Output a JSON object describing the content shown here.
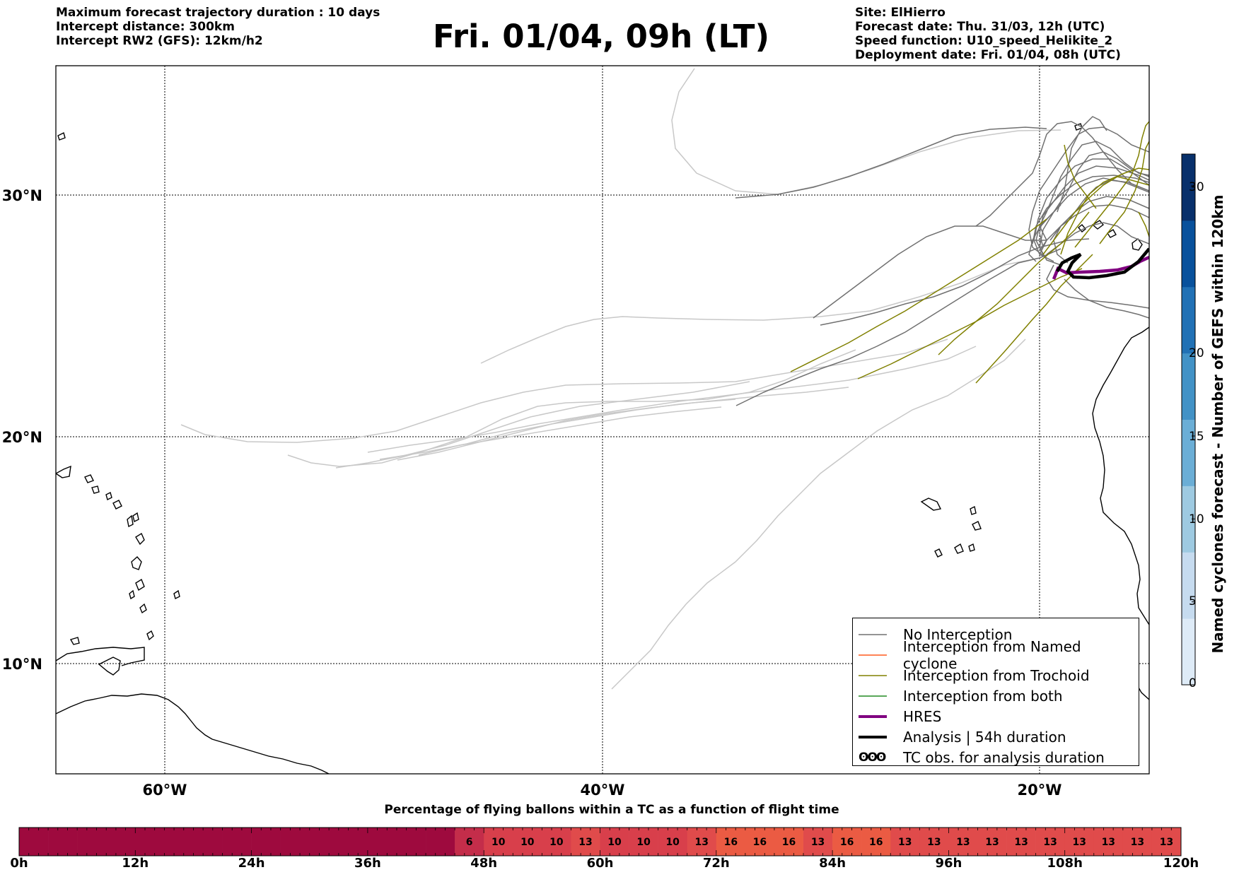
{
  "header": {
    "left_lines": [
      "Maximum forecast trajectory duration : 10 days",
      "Intercept distance: 300km",
      "Intercept RW2 (GFS):  12km/h2"
    ],
    "title": "Fri. 01/04, 09h (LT)",
    "right_lines": [
      "Site: ElHierro",
      "Forecast date: Thu. 31/03, 12h (UTC)",
      "Speed function: U10_speed_Helikite_2",
      "Deployment date: Fri. 01/04, 08h (UTC)"
    ]
  },
  "map": {
    "extent": {
      "lon_min": -65,
      "lon_max": -15,
      "lat_min": 5.4,
      "lat_max": 34.7
    },
    "lat_labels": [
      "30°N",
      "20°N",
      "10°N"
    ],
    "lon_labels": [
      "60°W",
      "40°W",
      "20°W"
    ],
    "colors": {
      "no_interception": "#707070",
      "no_interception_light": "#c8c8c8",
      "trochoid": "#808000",
      "named_cyclone": "#ff5a1e",
      "both": "#228b22",
      "hres": "#800080",
      "analysis": "#000000"
    }
  },
  "legend": {
    "items": [
      {
        "label": "No Interception",
        "color": "#707070",
        "width": 1.2
      },
      {
        "label": "Interception from Named cyclone",
        "color": "#ff5a1e",
        "width": 1.2
      },
      {
        "label": "Interception from Trochoid",
        "color": "#808000",
        "width": 1.2
      },
      {
        "label": "Interception from both",
        "color": "#228b22",
        "width": 1.2
      },
      {
        "label": "HRES",
        "color": "#800080",
        "width": 4
      },
      {
        "label": "Analysis | 54h duration",
        "color": "#000000",
        "width": 4
      }
    ],
    "tc_obs_label": "TC obs. for analysis duration",
    "tc_obs_symbol": "ʘʘʘ"
  },
  "colorbar": {
    "title": "Named cyclones forecast - Number of GEFS within 120km",
    "range": [
      0,
      32
    ],
    "ticks": [
      "0",
      "5",
      "10",
      "15",
      "20",
      "30"
    ],
    "tick_values": [
      0,
      5,
      10,
      15,
      20,
      30
    ],
    "colors": [
      "#deebf7",
      "#c6dbef",
      "#9ecae1",
      "#6baed6",
      "#4292c6",
      "#2171b5",
      "#08519c",
      "#08306b"
    ]
  },
  "bottom_bar": {
    "title": "Percentage of flying ballons within a TC as a function of flight time",
    "hour_labels": [
      "0h",
      "12h",
      "24h",
      "36h",
      "48h",
      "60h",
      "72h",
      "84h",
      "96h",
      "108h",
      "120h"
    ],
    "values": [
      0,
      0,
      0,
      0,
      0,
      0,
      0,
      0,
      0,
      0,
      0,
      0,
      0,
      0,
      0,
      6,
      10,
      10,
      10,
      13,
      10,
      10,
      10,
      13,
      16,
      16,
      16,
      13,
      16,
      16,
      13,
      13,
      13,
      13,
      13,
      13,
      13,
      13,
      13,
      13
    ],
    "value_labels": [
      "",
      "",
      "",
      "",
      "",
      "",
      "",
      "",
      "",
      "",
      "",
      "",
      "",
      "",
      "",
      "6",
      "10",
      "10",
      "10",
      "13",
      "10",
      "10",
      "10",
      "13",
      "16",
      "16",
      "16",
      "13",
      "16",
      "16",
      "13",
      "13",
      "13",
      "13",
      "13",
      "13",
      "13",
      "13",
      "13",
      "13"
    ],
    "colors": {
      "0": "#9e0a3e",
      "6": "#c42d4a",
      "10": "#d83f4b",
      "13": "#e04b4b",
      "16": "#eb5b43"
    }
  }
}
